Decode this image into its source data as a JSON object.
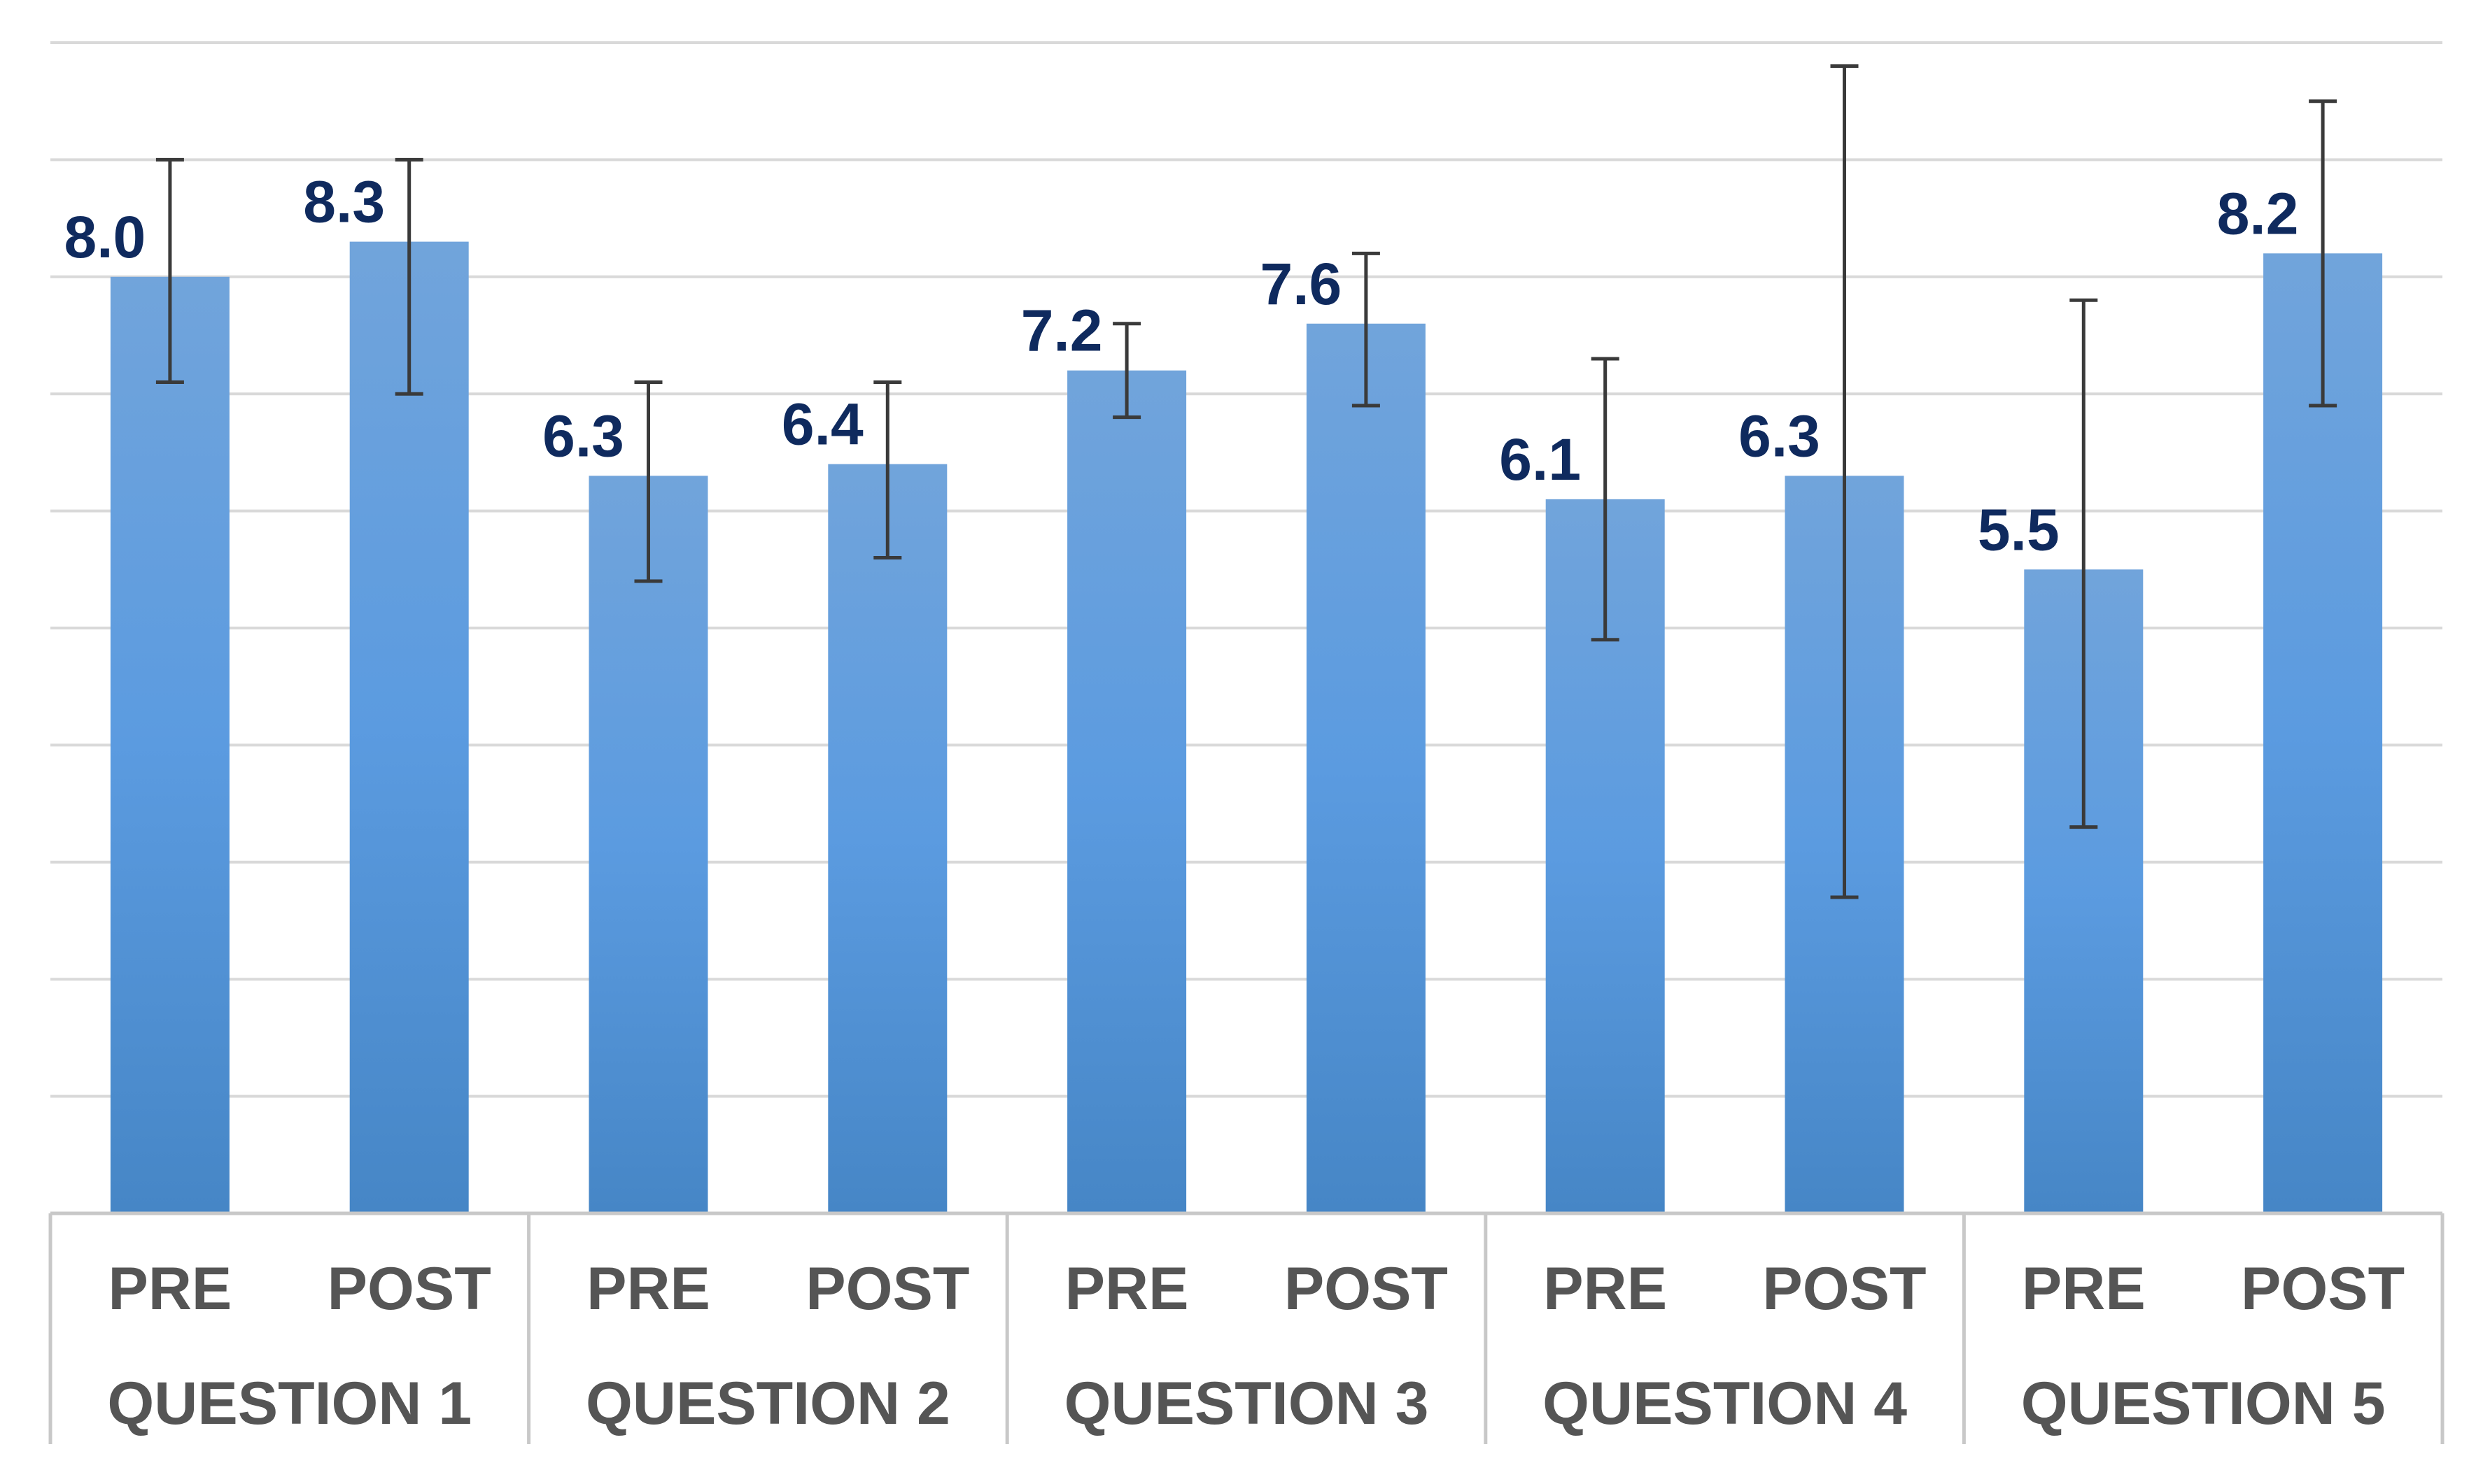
{
  "chart_data": {
    "type": "bar",
    "groups": [
      "QUESTION 1",
      "QUESTION 2",
      "QUESTION 3",
      "QUESTION 4",
      "QUESTION 5"
    ],
    "sub_categories": [
      "PRE",
      "POST"
    ],
    "values": [
      8.0,
      8.3,
      6.3,
      6.4,
      7.2,
      7.6,
      6.1,
      6.3,
      5.5,
      8.2
    ],
    "value_labels": [
      "8.0",
      "8.3",
      "6.3",
      "6.4",
      "7.2",
      "7.6",
      "6.1",
      "6.3",
      "5.5",
      "8.2"
    ],
    "error_low": [
      7.1,
      7.0,
      5.4,
      5.6,
      6.8,
      6.9,
      4.9,
      2.7,
      3.3,
      6.9
    ],
    "error_high": [
      9.0,
      9.0,
      7.1,
      7.1,
      7.6,
      8.2,
      7.3,
      9.8,
      7.8,
      9.5
    ],
    "ylim": [
      0,
      10
    ],
    "y_gridline_step": 1,
    "y_gridlines_shown": true,
    "y_tick_labels_shown": false,
    "legend": "none",
    "colors": {
      "bar_top": "#71a4db",
      "bar_bottom": "#4686c6",
      "gridline": "#d9d9d9",
      "axis": "#c8c8c8",
      "error_bar": "#3a3a3a",
      "value_label": "#0f2a5e",
      "tick_label": "#555555"
    }
  }
}
